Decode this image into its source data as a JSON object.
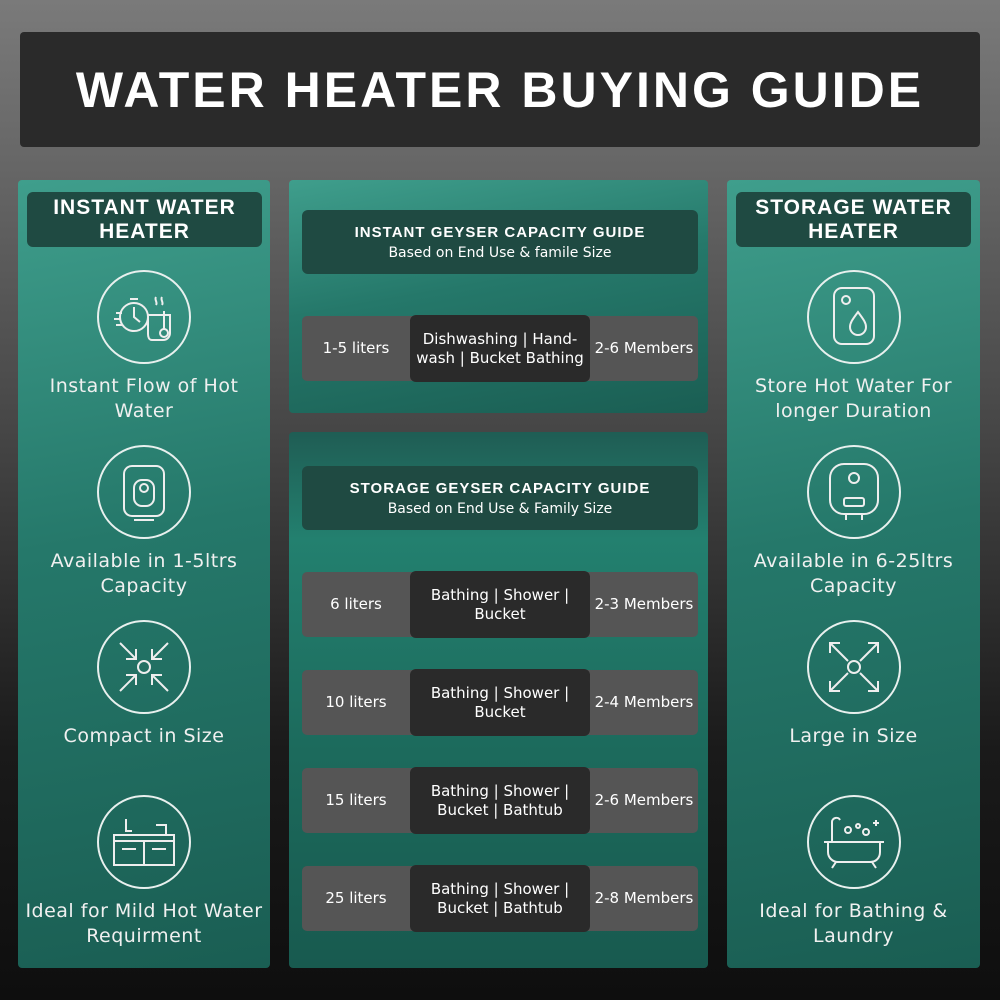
{
  "title": "WATER HEATER BUYING GUIDE",
  "left": {
    "header": "INSTANT WATER HEATER",
    "features": [
      {
        "icon": "stopwatch-hot-water-icon",
        "text": "Instant Flow of Hot Water"
      },
      {
        "icon": "instant-geyser-icon",
        "text": "Available in 1-5ltrs Capacity"
      },
      {
        "icon": "compress-arrows-icon",
        "text": "Compact in Size"
      },
      {
        "icon": "kitchen-sink-icon",
        "text": "Ideal for Mild Hot Water Requirment"
      }
    ]
  },
  "right": {
    "header": "STORAGE WATER HEATER",
    "features": [
      {
        "icon": "storage-tank-drop-icon",
        "text": "Store Hot Water For longer Duration"
      },
      {
        "icon": "storage-geyser-icon",
        "text": "Available in 6-25ltrs Capacity"
      },
      {
        "icon": "expand-arrows-icon",
        "text": "Large in Size"
      },
      {
        "icon": "bathtub-icon",
        "text": "Ideal for Bathing & Laundry"
      }
    ]
  },
  "instant_guide": {
    "title": "INSTANT GEYSER CAPACITY GUIDE",
    "subtitle": "Based on End Use & famile Size",
    "rows": [
      {
        "capacity": "1-5 liters",
        "use": "Dishwashing | Hand-wash | Bucket Bathing",
        "members": "2-6 Members"
      }
    ]
  },
  "storage_guide": {
    "title": "STORAGE GEYSER CAPACITY GUIDE",
    "subtitle": "Based on End Use & Family Size",
    "rows": [
      {
        "capacity": "6 liters",
        "use": "Bathing | Shower | Bucket",
        "members": "2-3 Members"
      },
      {
        "capacity": "10 liters",
        "use": "Bathing | Shower | Bucket",
        "members": "2-4 Members"
      },
      {
        "capacity": "15 liters",
        "use": "Bathing | Shower | Bucket | Bathtub",
        "members": "2-6 Members"
      },
      {
        "capacity": "25 liters",
        "use": "Bathing | Shower | Bucket | Bathtub",
        "members": "2-8 Members"
      }
    ]
  },
  "colors": {
    "panel": "#2a8a78",
    "header": "#1f4a42",
    "title_bar": "#2a2a2a"
  }
}
